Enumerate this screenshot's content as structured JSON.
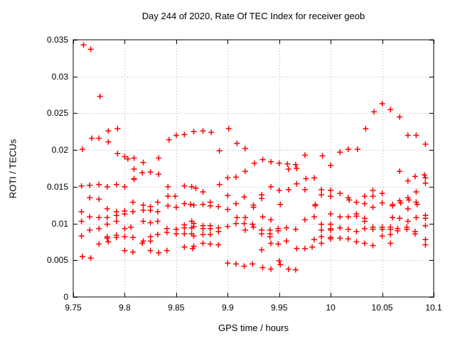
{
  "page": {
    "background": "#ffffff"
  },
  "chart_data": {
    "type": "scatter",
    "title": "Day 244 of 2020, Rate Of TEC Index for receiver geob",
    "xlabel": "GPS time / hours",
    "ylabel": "ROTI / TECUs",
    "xlim": [
      9.75,
      10.1
    ],
    "ylim": [
      0,
      0.035
    ],
    "x_ticks": [
      9.75,
      9.8,
      9.85,
      9.9,
      9.95,
      10,
      10.05,
      10.1
    ],
    "x_tick_labels": [
      "9.75",
      "9.8",
      "9.85",
      "9.9",
      "9.95",
      "10",
      "10.05",
      "10.1"
    ],
    "y_ticks": [
      0,
      0.005,
      0.01,
      0.015,
      0.02,
      0.025,
      0.03,
      0.035
    ],
    "y_tick_labels": [
      "0",
      "0.005",
      "0.01",
      "0.015",
      "0.02",
      "0.025",
      "0.03",
      "0.035"
    ],
    "grid": true,
    "legend_position": "none",
    "marker": "plus",
    "colors": {
      "marker": "#ff0000",
      "grid": "#b0b0b0",
      "axis": "#000000",
      "text": "#000000"
    },
    "series": [
      {
        "points": [
          [
            9.76,
            0.0343
          ],
          [
            9.767,
            0.0337
          ],
          [
            9.776,
            0.0273
          ],
          [
            9.759,
            0.0201
          ],
          [
            9.768,
            0.0216
          ],
          [
            9.775,
            0.0216
          ],
          [
            9.784,
            0.0226
          ],
          [
            9.784,
            0.0211
          ],
          [
            9.793,
            0.0229
          ],
          [
            9.793,
            0.0195
          ],
          [
            9.8,
            0.0191
          ],
          [
            9.803,
            0.0188
          ],
          [
            9.809,
            0.0189
          ],
          [
            9.818,
            0.0183
          ],
          [
            9.833,
            0.0189
          ],
          [
            9.843,
            0.0214
          ],
          [
            9.85,
            0.022
          ],
          [
            9.858,
            0.0221
          ],
          [
            9.867,
            0.0225
          ],
          [
            9.876,
            0.0226
          ],
          [
            9.884,
            0.0224
          ],
          [
            9.892,
            0.0199
          ],
          [
            9.901,
            0.0229
          ],
          [
            9.909,
            0.0209
          ],
          [
            9.917,
            0.0202
          ],
          [
            9.926,
            0.0182
          ],
          [
            9.934,
            0.0187
          ],
          [
            9.942,
            0.0184
          ],
          [
            9.95,
            0.0182
          ],
          [
            9.958,
            0.0181
          ],
          [
            9.966,
            0.018
          ],
          [
            9.975,
            0.0193
          ],
          [
            9.992,
            0.0192
          ],
          [
            10.0,
            0.0179
          ],
          [
            10.009,
            0.0197
          ],
          [
            10.017,
            0.0201
          ],
          [
            10.026,
            0.0201
          ],
          [
            10.034,
            0.0229
          ],
          [
            10.042,
            0.0252
          ],
          [
            10.05,
            0.0263
          ],
          [
            10.058,
            0.0255
          ],
          [
            10.067,
            0.0245
          ],
          [
            10.075,
            0.022
          ],
          [
            10.083,
            0.022
          ],
          [
            10.092,
            0.0208
          ],
          [
            9.809,
            0.0174
          ],
          [
            9.809,
            0.0161
          ],
          [
            9.817,
            0.0169
          ],
          [
            9.825,
            0.017
          ],
          [
            9.833,
            0.0167
          ],
          [
            9.9,
            0.0162
          ],
          [
            9.908,
            0.0163
          ],
          [
            9.917,
            0.0171
          ],
          [
            9.959,
            0.0174
          ],
          [
            9.967,
            0.0175
          ],
          [
            9.976,
            0.0161
          ],
          [
            9.984,
            0.0162
          ],
          [
            10.067,
            0.0171
          ],
          [
            10.082,
            0.0164
          ],
          [
            10.091,
            0.0166
          ],
          [
            10.092,
            0.0162
          ],
          [
            10.075,
            0.0158
          ],
          [
            10.092,
            0.0155
          ],
          [
            9.758,
            0.0151
          ],
          [
            9.766,
            0.0152
          ],
          [
            9.775,
            0.0153
          ],
          [
            9.783,
            0.015
          ],
          [
            9.792,
            0.0153
          ],
          [
            9.8,
            0.015
          ],
          [
            9.809,
            0.016
          ],
          [
            9.842,
            0.015
          ],
          [
            9.858,
            0.0151
          ],
          [
            9.865,
            0.015
          ],
          [
            9.869,
            0.0148
          ],
          [
            9.876,
            0.0143
          ],
          [
            9.892,
            0.0153
          ],
          [
            9.942,
            0.015
          ],
          [
            9.95,
            0.0145
          ],
          [
            9.959,
            0.0146
          ],
          [
            9.967,
            0.0154
          ],
          [
            9.975,
            0.0146
          ],
          [
            9.991,
            0.0146
          ],
          [
            9.991,
            0.0139
          ],
          [
            10.0,
            0.0145
          ],
          [
            10.0,
            0.0137
          ],
          [
            10.009,
            0.0141
          ],
          [
            10.041,
            0.0145
          ],
          [
            10.05,
            0.0141
          ],
          [
            10.083,
            0.0143
          ],
          [
            9.766,
            0.0135
          ],
          [
            9.775,
            0.0133
          ],
          [
            9.842,
            0.0137
          ],
          [
            9.849,
            0.0137
          ],
          [
            9.9,
            0.0138
          ],
          [
            9.916,
            0.0136
          ],
          [
            9.933,
            0.0139
          ],
          [
            9.933,
            0.0134
          ],
          [
            10.017,
            0.0135
          ],
          [
            10.018,
            0.0132
          ],
          [
            10.033,
            0.0137
          ],
          [
            10.041,
            0.0137
          ],
          [
            10.067,
            0.0131
          ],
          [
            10.068,
            0.0128
          ],
          [
            10.075,
            0.0135
          ],
          [
            10.076,
            0.0132
          ],
          [
            10.083,
            0.0129
          ],
          [
            10.084,
            0.0126
          ],
          [
            9.808,
            0.0129
          ],
          [
            9.818,
            0.0125
          ],
          [
            9.825,
            0.0123
          ],
          [
            9.832,
            0.0129
          ],
          [
            9.842,
            0.0124
          ],
          [
            9.85,
            0.0122
          ],
          [
            9.858,
            0.0127
          ],
          [
            9.864,
            0.0126
          ],
          [
            9.867,
            0.0125
          ],
          [
            9.876,
            0.0126
          ],
          [
            9.883,
            0.0129
          ],
          [
            9.883,
            0.0124
          ],
          [
            9.891,
            0.0123
          ],
          [
            9.908,
            0.0127
          ],
          [
            9.925,
            0.0125
          ],
          [
            9.925,
            0.0122
          ],
          [
            9.951,
            0.0126
          ],
          [
            9.985,
            0.0126
          ],
          [
            9.985,
            0.0124
          ],
          [
            10.025,
            0.0129
          ],
          [
            10.033,
            0.0127
          ],
          [
            10.041,
            0.0122
          ],
          [
            10.05,
            0.0128
          ],
          [
            10.06,
            0.0126
          ],
          [
            10.06,
            0.0124
          ],
          [
            9.783,
            0.012
          ],
          [
            9.792,
            0.0116
          ],
          [
            9.8,
            0.0117
          ],
          [
            9.808,
            0.0116
          ],
          [
            9.818,
            0.0118
          ],
          [
            9.825,
            0.0118
          ],
          [
            9.832,
            0.0116
          ],
          [
            9.9,
            0.0119
          ],
          [
            10.075,
            0.012
          ],
          [
            9.758,
            0.0116
          ],
          [
            9.758,
            0.0103
          ],
          [
            9.766,
            0.0109
          ],
          [
            9.775,
            0.0108
          ],
          [
            9.783,
            0.0108
          ],
          [
            9.792,
            0.0111
          ],
          [
            9.792,
            0.0103
          ],
          [
            9.8,
            0.0113
          ],
          [
            9.818,
            0.0103
          ],
          [
            9.825,
            0.0101
          ],
          [
            9.832,
            0.0103
          ],
          [
            9.865,
            0.0103
          ],
          [
            9.867,
            0.01
          ],
          [
            9.909,
            0.0108
          ],
          [
            9.917,
            0.0108
          ],
          [
            9.934,
            0.0109
          ],
          [
            9.942,
            0.0105
          ],
          [
            9.975,
            0.0105
          ],
          [
            9.984,
            0.0109
          ],
          [
            10.0,
            0.0113
          ],
          [
            10.009,
            0.0109
          ],
          [
            10.017,
            0.0109
          ],
          [
            10.025,
            0.0113
          ],
          [
            10.025,
            0.011
          ],
          [
            10.033,
            0.0107
          ],
          [
            10.033,
            0.0103
          ],
          [
            10.06,
            0.0108
          ],
          [
            10.067,
            0.0107
          ],
          [
            10.075,
            0.0103
          ],
          [
            10.083,
            0.0108
          ],
          [
            10.092,
            0.0111
          ],
          [
            10.092,
            0.0107
          ],
          [
            9.766,
            0.0091
          ],
          [
            9.775,
            0.0093
          ],
          [
            9.783,
            0.0099
          ],
          [
            9.8,
            0.0093
          ],
          [
            9.806,
            0.0095
          ],
          [
            9.841,
            0.0093
          ],
          [
            9.841,
            0.0088
          ],
          [
            9.85,
            0.0092
          ],
          [
            9.85,
            0.0086
          ],
          [
            9.858,
            0.0098
          ],
          [
            9.858,
            0.0094
          ],
          [
            9.865,
            0.0094
          ],
          [
            9.867,
            0.0096
          ],
          [
            9.876,
            0.0097
          ],
          [
            9.876,
            0.0093
          ],
          [
            9.883,
            0.0097
          ],
          [
            9.883,
            0.0093
          ],
          [
            9.891,
            0.0094
          ],
          [
            9.891,
            0.0089
          ],
          [
            9.9,
            0.0096
          ],
          [
            9.908,
            0.01
          ],
          [
            9.916,
            0.01
          ],
          [
            9.917,
            0.0091
          ],
          [
            9.924,
            0.0099
          ],
          [
            9.925,
            0.0095
          ],
          [
            9.933,
            0.0091
          ],
          [
            9.941,
            0.0091
          ],
          [
            9.949,
            0.0093
          ],
          [
            9.949,
            0.009
          ],
          [
            9.957,
            0.0094
          ],
          [
            9.966,
            0.0092
          ],
          [
            9.991,
            0.0099
          ],
          [
            9.991,
            0.0091
          ],
          [
            10.0,
            0.0099
          ],
          [
            10.0,
            0.0093
          ],
          [
            10.0,
            0.0091
          ],
          [
            10.009,
            0.0094
          ],
          [
            10.017,
            0.0092
          ],
          [
            10.033,
            0.0093
          ],
          [
            10.041,
            0.0095
          ],
          [
            10.041,
            0.0092
          ],
          [
            10.05,
            0.0095
          ],
          [
            10.05,
            0.0092
          ],
          [
            10.058,
            0.0095
          ],
          [
            10.058,
            0.0092
          ],
          [
            10.065,
            0.0093
          ],
          [
            10.065,
            0.009
          ],
          [
            10.074,
            0.0095
          ],
          [
            10.074,
            0.0092
          ],
          [
            10.092,
            0.0097
          ],
          [
            9.758,
            0.0083
          ],
          [
            9.783,
            0.0082
          ],
          [
            9.783,
            0.008
          ],
          [
            9.792,
            0.0084
          ],
          [
            9.792,
            0.0081
          ],
          [
            9.8,
            0.0082
          ],
          [
            9.808,
            0.0081
          ],
          [
            9.825,
            0.0082
          ],
          [
            9.832,
            0.0085
          ],
          [
            9.858,
            0.0086
          ],
          [
            9.865,
            0.0086
          ],
          [
            9.867,
            0.0083
          ],
          [
            9.876,
            0.0085
          ],
          [
            9.883,
            0.0085
          ],
          [
            9.933,
            0.0086
          ],
          [
            9.941,
            0.0086
          ],
          [
            9.941,
            0.0082
          ],
          [
            9.991,
            0.0082
          ],
          [
            10.0,
            0.0081
          ],
          [
            10.0,
            0.0079
          ],
          [
            10.009,
            0.008
          ],
          [
            10.017,
            0.0079
          ],
          [
            10.025,
            0.0089
          ],
          [
            10.05,
            0.0083
          ],
          [
            10.058,
            0.0085
          ],
          [
            10.082,
            0.0089
          ],
          [
            10.082,
            0.0086
          ],
          [
            10.092,
            0.0078
          ],
          [
            9.775,
            0.0072
          ],
          [
            9.784,
            0.0075
          ],
          [
            9.8,
            0.0063
          ],
          [
            9.808,
            0.0061
          ],
          [
            9.817,
            0.0073
          ],
          [
            9.818,
            0.0076
          ],
          [
            9.825,
            0.0076
          ],
          [
            9.825,
            0.0063
          ],
          [
            9.833,
            0.006
          ],
          [
            9.841,
            0.0063
          ],
          [
            9.858,
            0.0068
          ],
          [
            9.866,
            0.0066
          ],
          [
            9.867,
            0.0069
          ],
          [
            9.876,
            0.0073
          ],
          [
            9.883,
            0.0072
          ],
          [
            9.891,
            0.0071
          ],
          [
            9.933,
            0.0064
          ],
          [
            9.942,
            0.0073
          ],
          [
            9.949,
            0.0072
          ],
          [
            9.957,
            0.0076
          ],
          [
            9.967,
            0.0066
          ],
          [
            9.975,
            0.0066
          ],
          [
            9.982,
            0.0068
          ],
          [
            9.984,
            0.0078
          ],
          [
            9.991,
            0.0073
          ],
          [
            10.025,
            0.0075
          ],
          [
            10.033,
            0.0073
          ],
          [
            10.041,
            0.007
          ],
          [
            10.058,
            0.0073
          ],
          [
            10.092,
            0.0071
          ],
          [
            9.759,
            0.0055
          ],
          [
            9.767,
            0.0053
          ],
          [
            9.9,
            0.0046
          ],
          [
            9.908,
            0.0045
          ],
          [
            9.916,
            0.0042
          ],
          [
            9.924,
            0.0045
          ],
          [
            9.934,
            0.004
          ],
          [
            9.942,
            0.0038
          ],
          [
            9.95,
            0.0049
          ],
          [
            9.951,
            0.0044
          ],
          [
            9.959,
            0.0038
          ],
          [
            9.966,
            0.0037
          ]
        ]
      }
    ]
  }
}
